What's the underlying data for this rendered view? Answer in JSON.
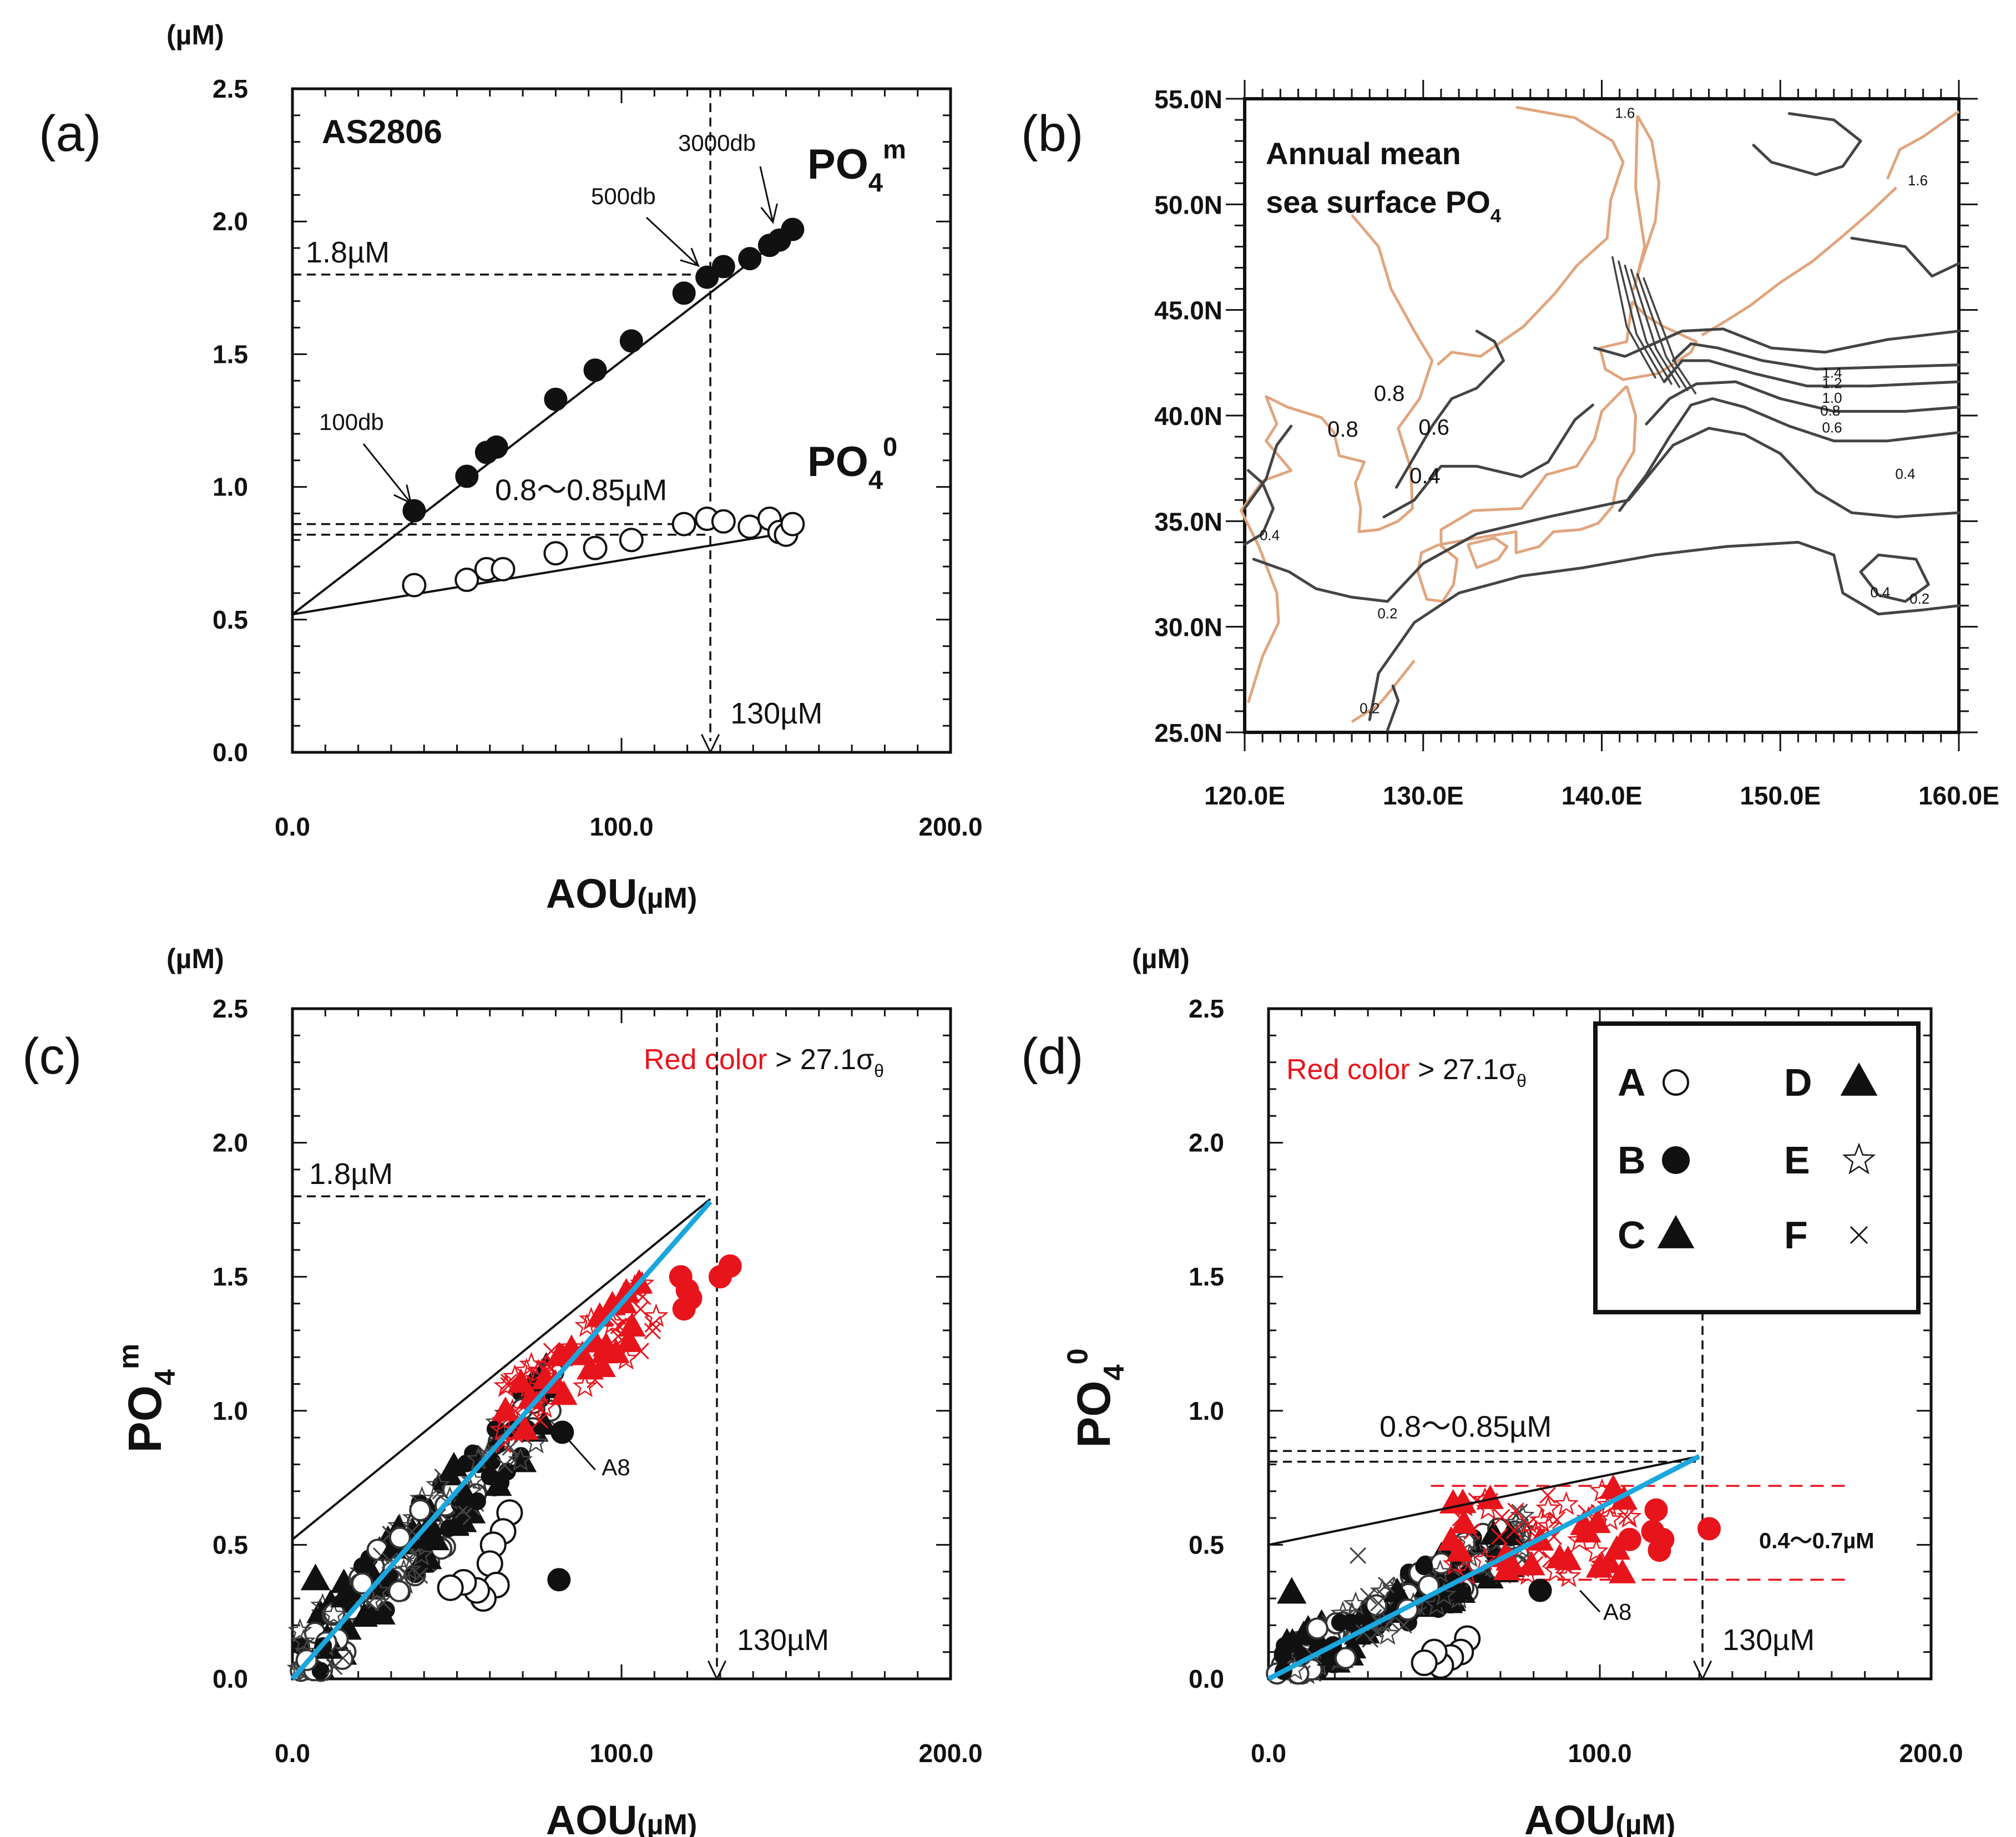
{
  "figure": {
    "unit_label": "(µM)",
    "xlabel_main": "AOU",
    "xlabel_unit": "(µM)",
    "aou_marker": "130µM",
    "red_note": "Red color",
    "red_note_rest": "> 27.1σ",
    "red_note_sub": "θ"
  },
  "colors": {
    "red": "#e8141c",
    "blue": "#1aa6de",
    "coast": "#e0a57e",
    "contour": "#444444"
  },
  "chart_data": [
    {
      "id": "a",
      "panel_label": "(a)",
      "type": "scatter",
      "title": "AS2806",
      "xlabel": "AOU(µM)",
      "ylabel": "(µM)",
      "xlim": [
        0,
        200
      ],
      "ylim": [
        0,
        2.5
      ],
      "xticks": [
        "0.0",
        "100.0",
        "200.0"
      ],
      "yticks": [
        "0.0",
        "0.5",
        "1.0",
        "1.5",
        "2.0",
        "2.5"
      ],
      "series": [
        {
          "name": "PO4m",
          "label_main": "PO",
          "label_sub": "4",
          "label_sup": "m",
          "marker": "filled-circle",
          "x": [
            37,
            53,
            59,
            62,
            80,
            92,
            103,
            119,
            126,
            131,
            139,
            145,
            148,
            152
          ],
          "y": [
            0.91,
            1.04,
            1.13,
            1.15,
            1.33,
            1.44,
            1.55,
            1.73,
            1.79,
            1.83,
            1.86,
            1.91,
            1.93,
            1.97
          ]
        },
        {
          "name": "PO40",
          "label_main": "PO",
          "label_sub": "4",
          "label_sup": "0",
          "marker": "open-circle",
          "x": [
            37,
            53,
            59,
            64,
            80,
            92,
            103,
            119,
            126,
            131,
            139,
            145,
            148,
            150,
            152
          ],
          "y": [
            0.63,
            0.65,
            0.69,
            0.69,
            0.75,
            0.77,
            0.8,
            0.86,
            0.88,
            0.87,
            0.85,
            0.88,
            0.83,
            0.82,
            0.86
          ]
        }
      ],
      "fit_lines": [
        {
          "name": "PO4m fit",
          "x": [
            0,
            152
          ],
          "y": [
            0.52,
            1.97
          ]
        },
        {
          "name": "PO40 fit",
          "x": [
            0,
            152
          ],
          "y": [
            0.52,
            0.83
          ]
        }
      ],
      "annotations": {
        "depth_100": "100db",
        "depth_500": "500db",
        "depth_3000": "3000db",
        "h_line_18": "1.8µM",
        "h_line_range": "0.8～0.85µM"
      }
    },
    {
      "id": "b",
      "panel_label": "(b)",
      "type": "map",
      "title_line1": "Annual mean",
      "title_line2": "sea surface PO",
      "title_sub": "4",
      "xlim": [
        120,
        160
      ],
      "ylim": [
        25,
        55
      ],
      "xticks": [
        "120.0E",
        "130.0E",
        "140.0E",
        "150.0E",
        "160.0E"
      ],
      "yticks": [
        "25.0N",
        "30.0N",
        "35.0N",
        "40.0N",
        "45.0N",
        "50.0N",
        "55.0N"
      ],
      "contour_labels": [
        "0.8",
        "0.8",
        "0.6",
        "0.4",
        "1.6",
        "1.6",
        "1.4",
        "1.2",
        "1.0",
        "0.8",
        "0.6",
        "0.4",
        "0.4",
        "0.2",
        "0.4",
        "0.2",
        "0.2"
      ]
    },
    {
      "id": "c",
      "panel_label": "(c)",
      "type": "scatter",
      "xlabel": "AOU(µM)",
      "ylabel_main": "PO",
      "ylabel_sub": "4",
      "ylabel_sup": "m",
      "xlim": [
        0,
        200
      ],
      "ylim": [
        0,
        2.5
      ],
      "xticks": [
        "0.0",
        "100.0",
        "200.0"
      ],
      "yticks": [
        "0.0",
        "0.5",
        "1.0",
        "1.5",
        "2.0",
        "2.5"
      ],
      "lines": [
        {
          "name": "black reference",
          "x": [
            0,
            127
          ],
          "y": [
            0.52,
            1.79
          ]
        },
        {
          "name": "blue regression",
          "x": [
            0,
            127
          ],
          "y": [
            0.0,
            1.78
          ]
        }
      ],
      "point_label": "A8",
      "h_line_label": "1.8µM"
    },
    {
      "id": "d",
      "panel_label": "(d)",
      "type": "scatter",
      "xlabel": "AOU(µM)",
      "ylabel_main": "PO",
      "ylabel_sub": "4",
      "ylabel_sup": "0",
      "xlim": [
        0,
        200
      ],
      "ylim": [
        0,
        2.5
      ],
      "xticks": [
        "0.0",
        "100.0",
        "200.0"
      ],
      "yticks": [
        "0.0",
        "0.5",
        "1.0",
        "1.5",
        "2.0",
        "2.5"
      ],
      "lines": [
        {
          "name": "black reference",
          "x": [
            0,
            130
          ],
          "y": [
            0.5,
            0.83
          ]
        },
        {
          "name": "blue regression",
          "x": [
            0,
            130
          ],
          "y": [
            0.0,
            0.83
          ]
        }
      ],
      "point_label": "A8",
      "h_line_label": "0.8～0.85µM",
      "red_band_label": "0.4～0.7µM",
      "legend": [
        {
          "label": "A",
          "marker": "open-circle"
        },
        {
          "label": "B",
          "marker": "filled-circle"
        },
        {
          "label": "C",
          "marker": "filled-triangle"
        },
        {
          "label": "D",
          "marker": "filled-triangle"
        },
        {
          "label": "E",
          "marker": "open-star"
        },
        {
          "label": "F",
          "marker": "cross"
        }
      ]
    }
  ]
}
